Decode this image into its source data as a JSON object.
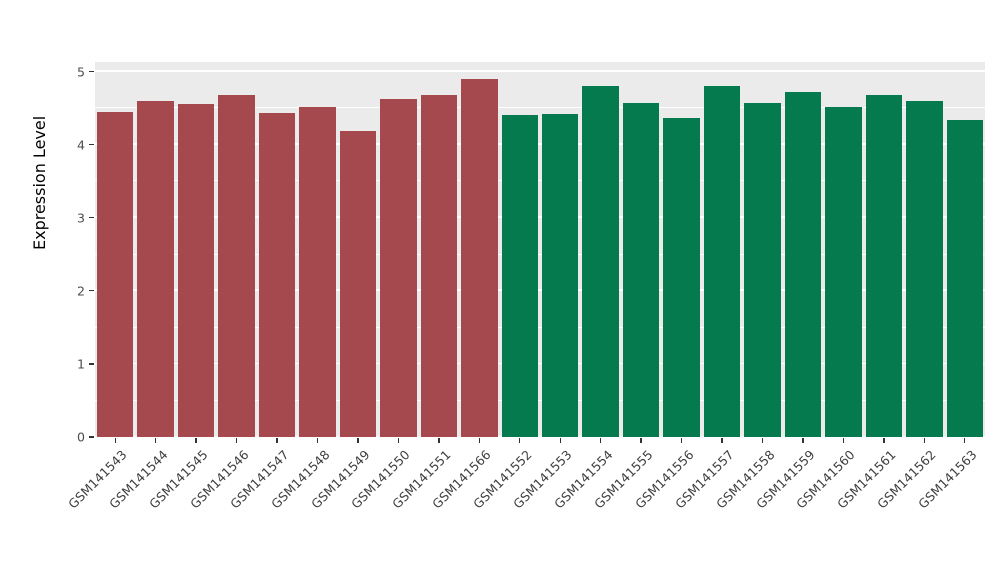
{
  "chart_data": {
    "type": "bar",
    "title": "",
    "xlabel": "",
    "ylabel": "Expression Level",
    "ylim": [
      0,
      5
    ],
    "y_ticks": [
      0,
      1,
      2,
      3,
      4,
      5
    ],
    "grid": "on",
    "legend": "none",
    "panel_background": "#EBEBEB",
    "gridline_color": "#ffffff",
    "categories": [
      "GSM141543",
      "GSM141544",
      "GSM141545",
      "GSM141546",
      "GSM141547",
      "GSM141548",
      "GSM141549",
      "GSM141550",
      "GSM141551",
      "GSM141566",
      "GSM141552",
      "GSM141553",
      "GSM141554",
      "GSM141555",
      "GSM141556",
      "GSM141557",
      "GSM141558",
      "GSM141559",
      "GSM141560",
      "GSM141561",
      "GSM141562",
      "GSM141563"
    ],
    "values": [
      4.45,
      4.6,
      4.55,
      4.68,
      4.43,
      4.51,
      4.18,
      4.63,
      4.68,
      4.9,
      4.4,
      4.42,
      4.8,
      4.57,
      4.37,
      4.8,
      4.57,
      4.72,
      4.51,
      4.68,
      4.6,
      4.33
    ],
    "groups": [
      "group1",
      "group1",
      "group1",
      "group1",
      "group1",
      "group1",
      "group1",
      "group1",
      "group1",
      "group1",
      "group2",
      "group2",
      "group2",
      "group2",
      "group2",
      "group2",
      "group2",
      "group2",
      "group2",
      "group2",
      "group2",
      "group2"
    ],
    "group_colors": {
      "group1": "#A5494F",
      "group2": "#067A4F"
    }
  }
}
